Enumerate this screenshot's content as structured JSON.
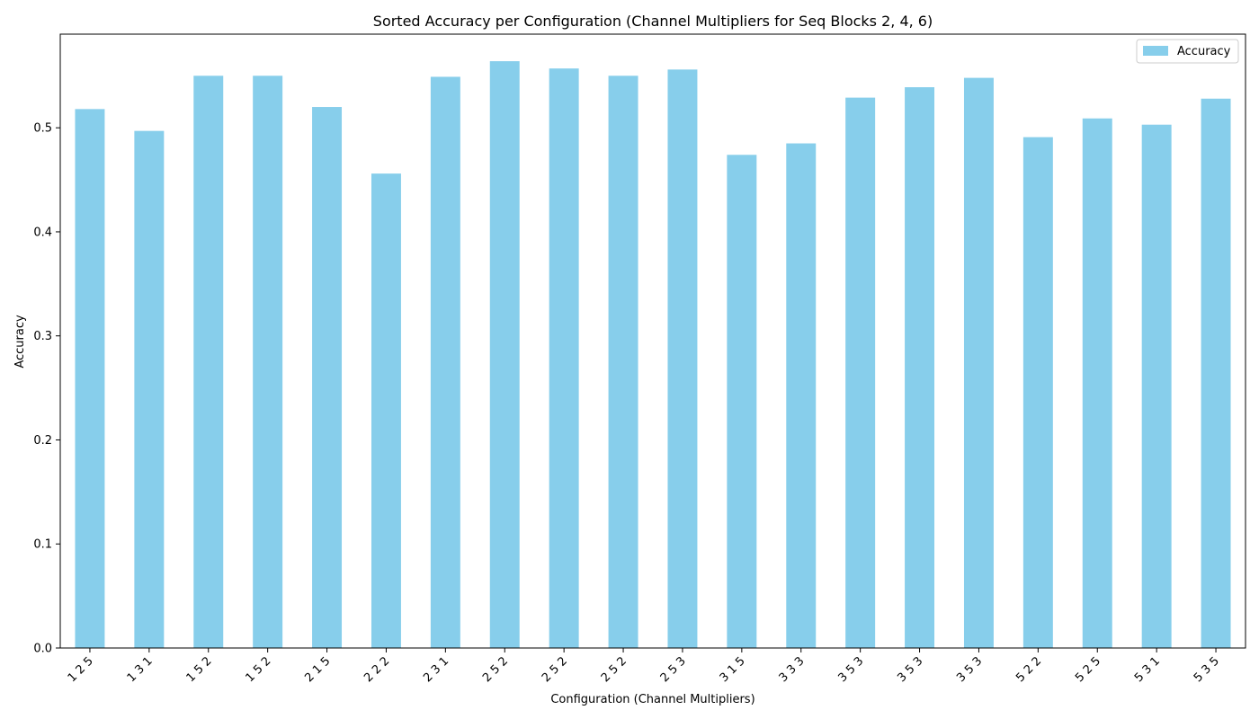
{
  "chart_data": {
    "type": "bar",
    "title": "Sorted Accuracy per Configuration (Channel Multipliers for Seq Blocks 2, 4, 6)",
    "xlabel": "Configuration (Channel Multipliers)",
    "ylabel": "Accuracy",
    "categories": [
      "1 2 5",
      "1 3 1",
      "1 5 2",
      "1 5 2",
      "2 1 5",
      "2 2 2",
      "2 3 1",
      "2 5 2",
      "2 5 2",
      "2 5 2",
      "2 5 3",
      "3 1 5",
      "3 3 3",
      "3 5 3",
      "3 5 3",
      "3 5 3",
      "5 2 2",
      "5 2 5",
      "5 3 1",
      "5 3 5"
    ],
    "series": [
      {
        "name": "Accuracy",
        "color": "#87ceeb",
        "values": [
          0.518,
          0.497,
          0.55,
          0.55,
          0.52,
          0.456,
          0.549,
          0.564,
          0.557,
          0.55,
          0.556,
          0.474,
          0.485,
          0.529,
          0.539,
          0.548,
          0.491,
          0.509,
          0.503,
          0.528
        ]
      }
    ],
    "ylim": [
      0,
      0.59
    ],
    "yticks": [
      "0.0",
      "0.1",
      "0.2",
      "0.3",
      "0.4",
      "0.5"
    ],
    "legend_position": "top-right",
    "grid": false
  }
}
